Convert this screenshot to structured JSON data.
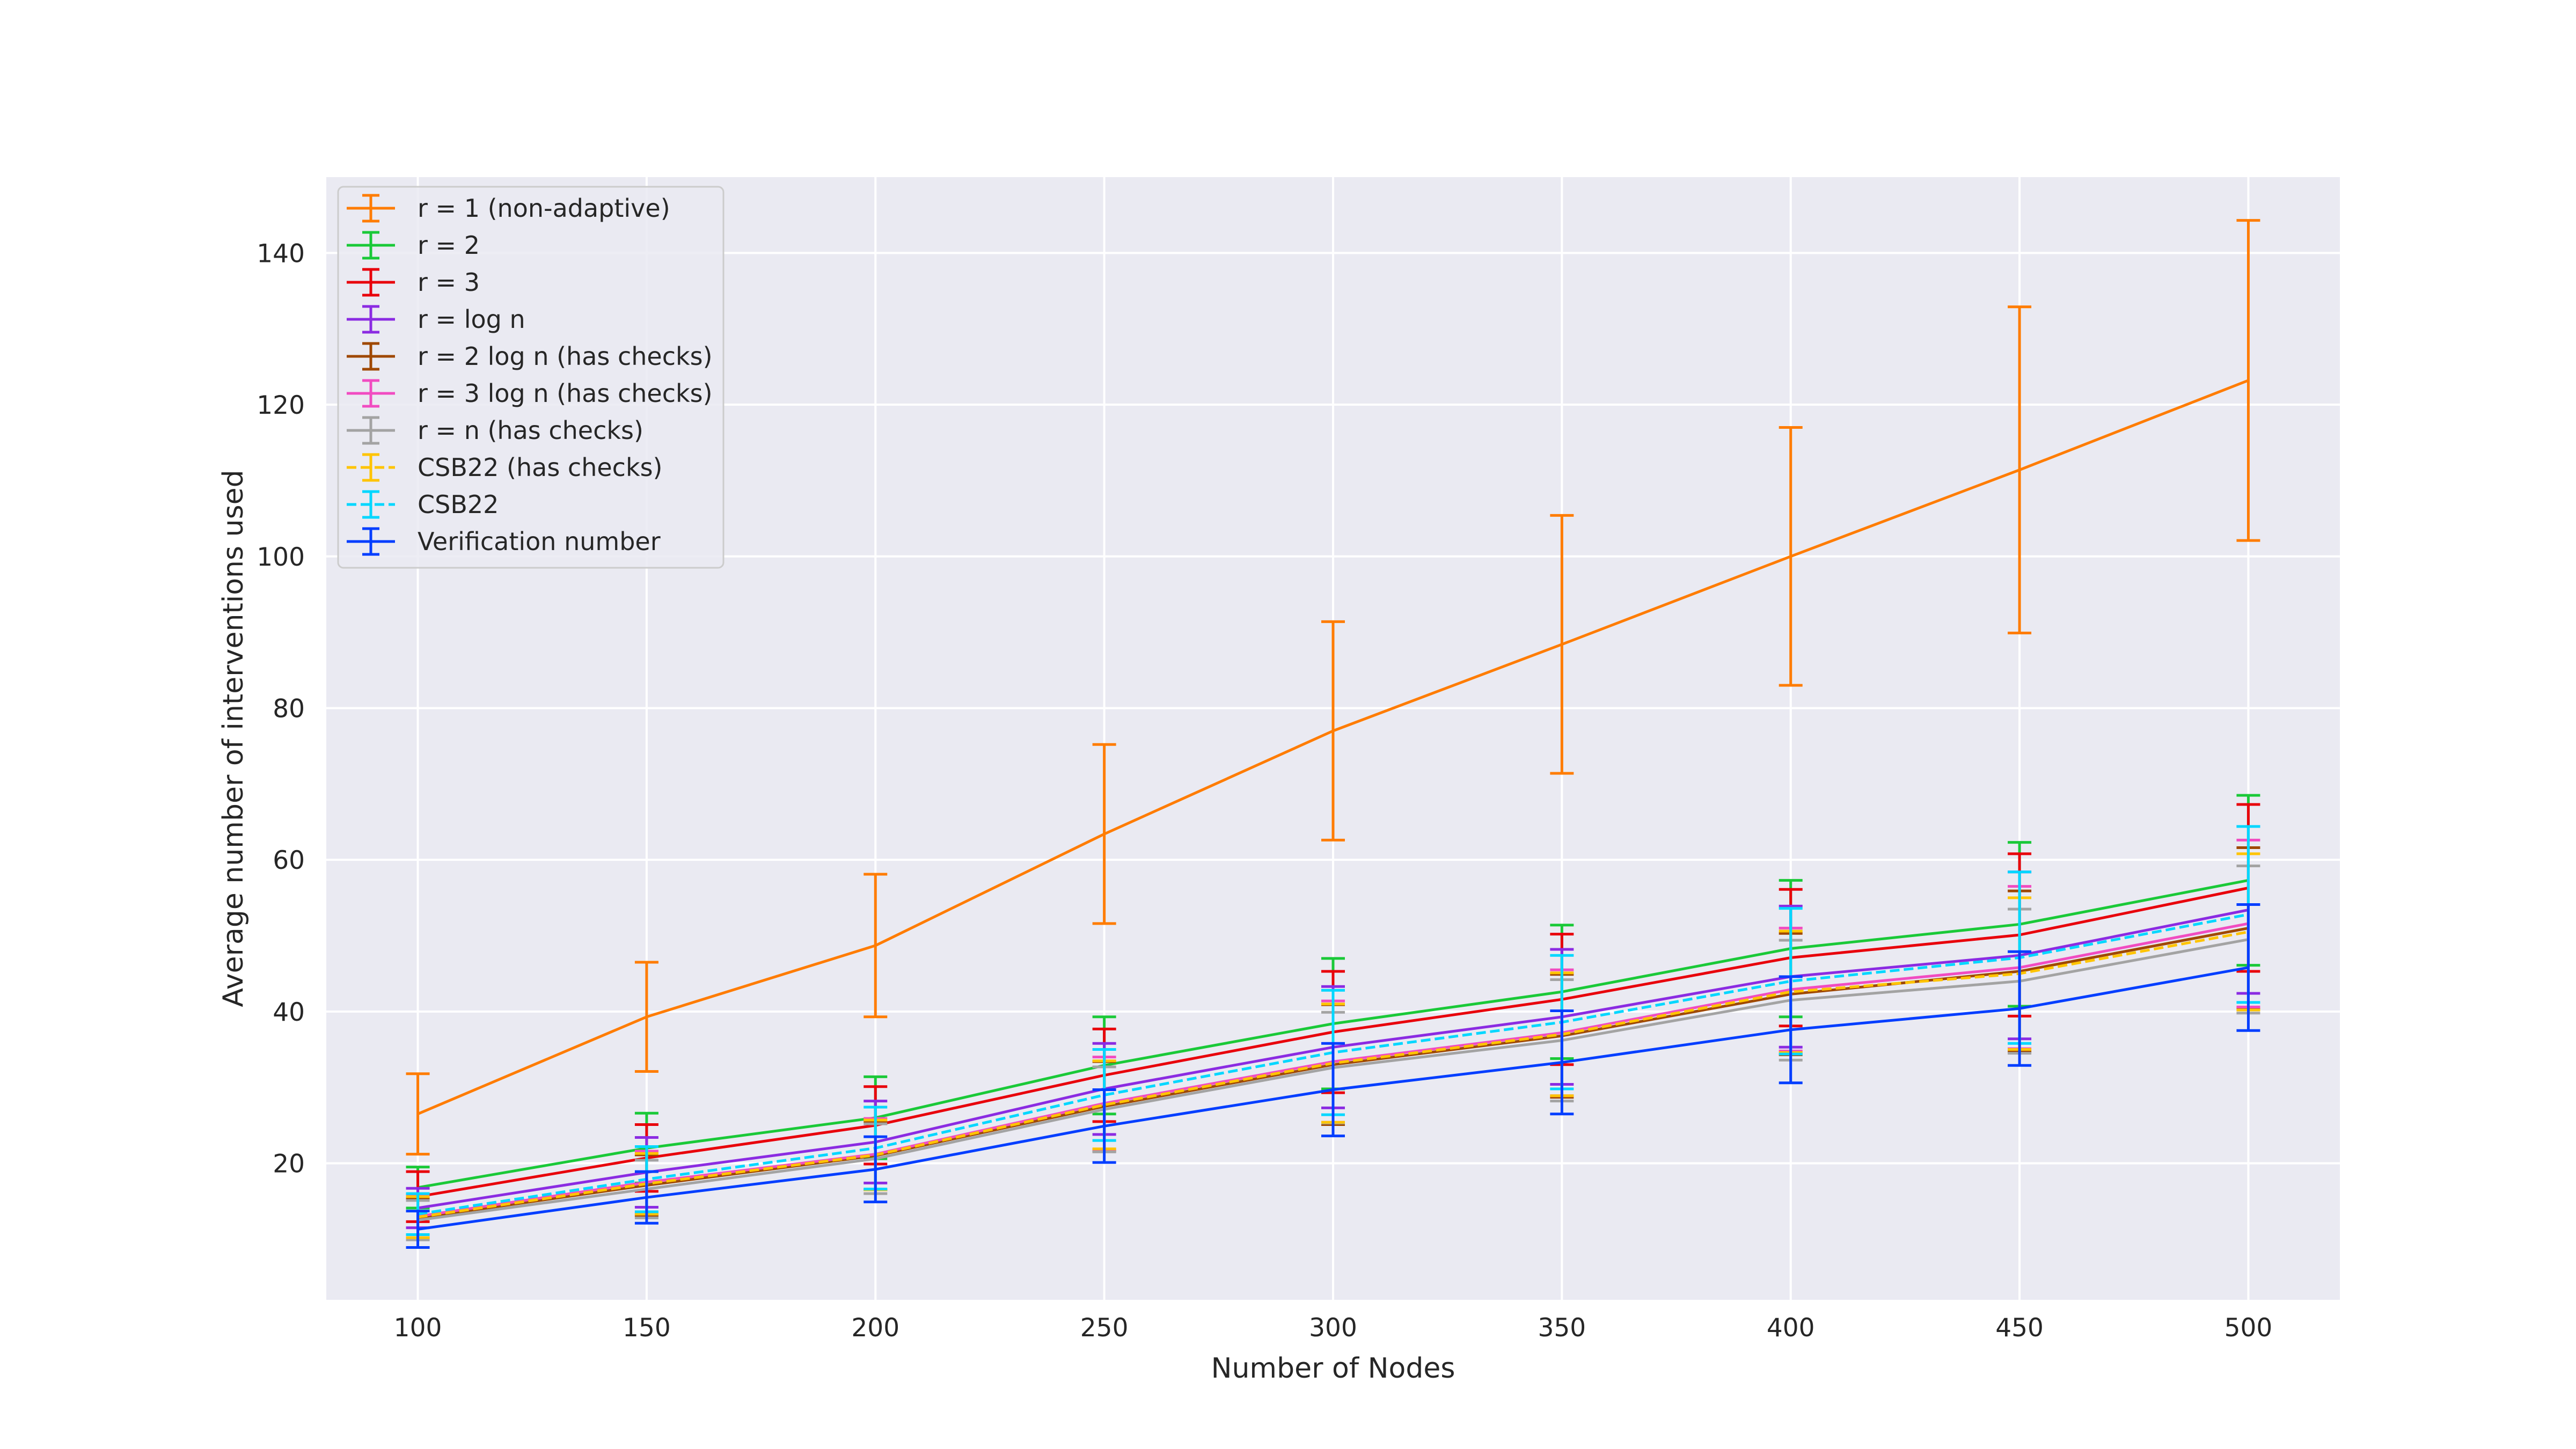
{
  "chart_data": {
    "type": "line",
    "title": "",
    "xlabel": "Number of Nodes",
    "ylabel": "Average number of interventions used",
    "x": [
      100,
      150,
      200,
      250,
      300,
      350,
      400,
      450,
      500
    ],
    "xlim": [
      80,
      520
    ],
    "ylim": [
      2,
      150
    ],
    "xticks": [
      100,
      150,
      200,
      250,
      300,
      350,
      400,
      450,
      500
    ],
    "yticks": [
      20,
      40,
      60,
      80,
      100,
      120,
      140
    ],
    "grid": true,
    "legend_position": "upper-left",
    "series": [
      {
        "name": "r = 1 (non-adaptive)",
        "color": "#ff7c00",
        "dash": "solid",
        "values": [
          26.5,
          39.3,
          48.7,
          63.4,
          77.0,
          88.4,
          100.0,
          111.4,
          123.2
        ],
        "err": [
          5.3,
          7.2,
          9.4,
          11.8,
          14.4,
          17.0,
          17.0,
          21.5,
          21.1
        ]
      },
      {
        "name": "r = 2",
        "color": "#1ac938",
        "dash": "solid",
        "values": [
          16.8,
          22.0,
          26.0,
          32.9,
          38.4,
          42.6,
          48.3,
          51.5,
          57.3
        ],
        "err": [
          2.7,
          4.6,
          5.4,
          6.4,
          8.6,
          8.8,
          9.0,
          10.8,
          11.2
        ]
      },
      {
        "name": "r = 3",
        "color": "#e8000b",
        "dash": "solid",
        "values": [
          15.6,
          20.7,
          25.0,
          31.6,
          37.3,
          41.6,
          47.1,
          50.1,
          56.3
        ],
        "err": [
          3.3,
          4.4,
          5.1,
          6.1,
          8.0,
          8.6,
          9.0,
          10.7,
          11.0
        ]
      },
      {
        "name": "r = log n",
        "color": "#8b2be2",
        "dash": "solid",
        "values": [
          14.1,
          18.8,
          22.8,
          29.8,
          35.3,
          39.3,
          44.6,
          47.4,
          53.4
        ],
        "err": [
          2.6,
          4.6,
          5.4,
          6.0,
          8.0,
          8.9,
          9.3,
          11.0,
          11.0
        ]
      },
      {
        "name": "r = 2 log n (has checks)",
        "color": "#9f4800",
        "dash": "solid",
        "values": [
          12.8,
          17.1,
          21.0,
          27.5,
          33.0,
          36.8,
          42.3,
          45.3,
          51.0
        ],
        "err": [
          2.6,
          4.0,
          4.5,
          5.9,
          7.9,
          8.1,
          8.0,
          10.6,
          10.6
        ]
      },
      {
        "name": "r = 3 log n (has checks)",
        "color": "#f14cc1",
        "dash": "solid",
        "values": [
          13.0,
          17.5,
          21.2,
          27.9,
          33.4,
          37.2,
          42.9,
          45.8,
          51.6
        ],
        "err": [
          2.8,
          4.1,
          4.7,
          6.1,
          8.0,
          8.3,
          8.1,
          10.7,
          11.0
        ]
      },
      {
        "name": "r = n (has checks)",
        "color": "#a3a3a3",
        "dash": "solid",
        "values": [
          12.5,
          16.6,
          20.6,
          27.1,
          32.6,
          36.2,
          41.5,
          44.0,
          49.5
        ],
        "err": [
          2.6,
          3.8,
          4.6,
          5.6,
          7.3,
          8.0,
          7.9,
          9.5,
          9.7
        ]
      },
      {
        "name": "CSB22 (has checks)",
        "color": "#ffc400",
        "dash": "dashed",
        "values": [
          12.9,
          17.3,
          21.1,
          27.7,
          33.2,
          37.0,
          42.6,
          45.0,
          50.5
        ],
        "err": [
          2.7,
          4.0,
          4.6,
          5.8,
          7.8,
          8.1,
          8.0,
          10.0,
          10.3
        ]
      },
      {
        "name": "CSB22",
        "color": "#00d7ff",
        "dash": "dashed",
        "values": [
          13.3,
          17.9,
          22.0,
          29.0,
          34.6,
          38.6,
          44.0,
          47.1,
          52.8
        ],
        "err": [
          2.7,
          4.3,
          5.4,
          6.0,
          8.2,
          8.8,
          9.6,
          11.3,
          11.6
        ]
      },
      {
        "name": "Verification number",
        "color": "#023eff",
        "dash": "solid",
        "values": [
          11.3,
          15.5,
          19.2,
          24.9,
          29.7,
          33.3,
          37.6,
          40.4,
          45.8
        ],
        "err": [
          2.4,
          3.4,
          4.3,
          4.8,
          6.1,
          6.8,
          7.0,
          7.5,
          8.3
        ]
      }
    ]
  }
}
